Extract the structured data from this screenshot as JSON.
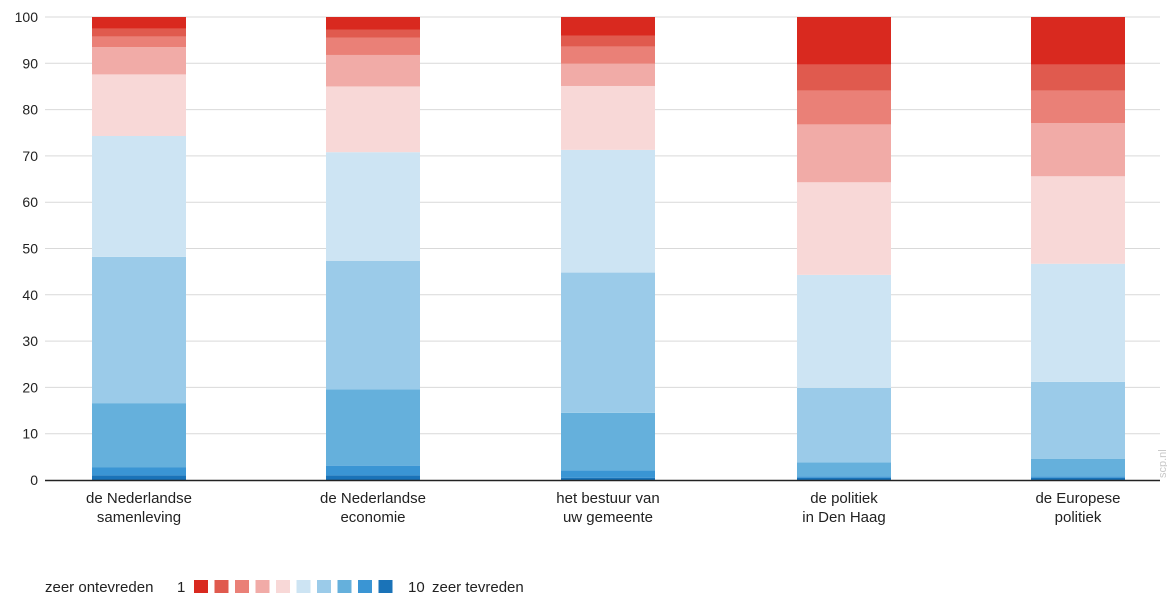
{
  "chart_data": {
    "type": "bar",
    "stacked": true,
    "categories": [
      [
        "de Nederlandse",
        "samenleving"
      ],
      [
        "de Nederlandse",
        "economie"
      ],
      [
        "het bestuur van",
        "uw gemeente"
      ],
      [
        "de politiek",
        "in Den Haag"
      ],
      [
        "de Europese",
        "politiek"
      ]
    ],
    "ylim": [
      0,
      100
    ],
    "yticks": [
      0,
      10,
      20,
      30,
      40,
      50,
      60,
      70,
      80,
      90,
      100
    ],
    "grid": true,
    "series": [
      {
        "label": "10",
        "color": "#1a73b8",
        "values": [
          1.0,
          1.0,
          0.5,
          0.5,
          0.5
        ]
      },
      {
        "label": "9",
        "color": "#3a95d4",
        "values": [
          1.7,
          2.1,
          1.6,
          0.3,
          0.3
        ]
      },
      {
        "label": "8",
        "color": "#65b0dc",
        "values": [
          13.9,
          16.5,
          12.4,
          3.0,
          3.8
        ]
      },
      {
        "label": "7",
        "color": "#9bcbe9",
        "values": [
          31.6,
          27.7,
          30.3,
          16.1,
          16.6
        ]
      },
      {
        "label": "6",
        "color": "#cde4f3",
        "values": [
          26.1,
          23.5,
          26.5,
          24.4,
          25.5
        ]
      },
      {
        "label": "5",
        "color": "#f8d8d7",
        "values": [
          13.3,
          14.2,
          13.8,
          20.0,
          18.9
        ]
      },
      {
        "label": "4",
        "color": "#f1aba7",
        "values": [
          5.9,
          6.8,
          4.8,
          12.5,
          11.5
        ]
      },
      {
        "label": "3",
        "color": "#ea8077",
        "values": [
          2.3,
          3.7,
          3.7,
          7.3,
          7.0
        ]
      },
      {
        "label": "2",
        "color": "#e05a4e",
        "values": [
          1.7,
          1.8,
          2.4,
          5.6,
          5.6
        ]
      },
      {
        "label": "1",
        "color": "#d9291f",
        "values": [
          2.5,
          2.7,
          4.0,
          10.3,
          10.3
        ]
      }
    ],
    "legend": {
      "placement": "bottom-left",
      "left_text": "zeer ontevreden",
      "left_number": "1",
      "right_number": "10",
      "right_text": "zeer tevreden",
      "swatches": [
        "#d9291f",
        "#e05a4e",
        "#ea8077",
        "#f1aba7",
        "#f8d8d7",
        "#cde4f3",
        "#9bcbe9",
        "#65b0dc",
        "#3a95d4",
        "#1a73b8"
      ]
    },
    "watermark": "scp.nl"
  }
}
